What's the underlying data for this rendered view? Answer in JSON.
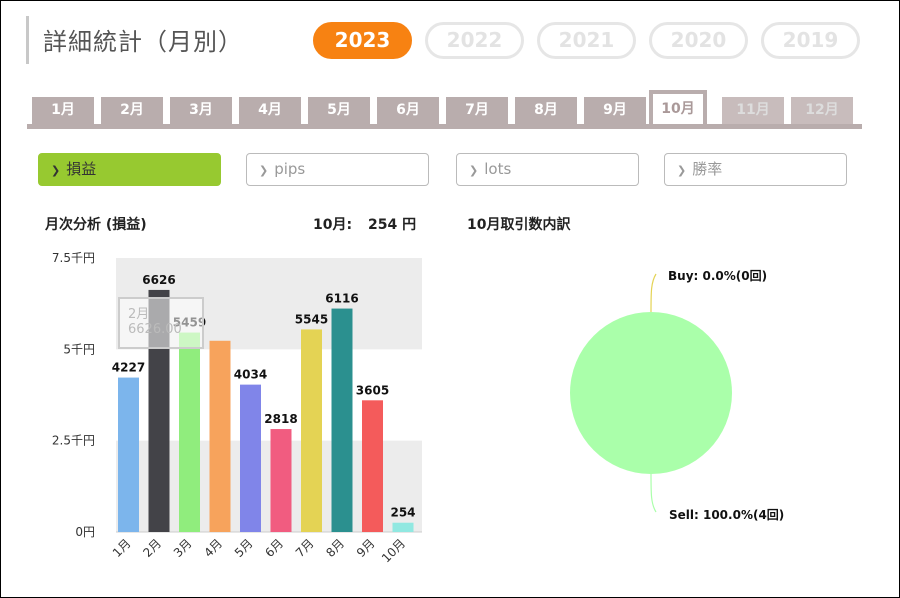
{
  "header": {
    "title": "詳細統計（月別）"
  },
  "years": [
    {
      "label": "2023",
      "active": true
    },
    {
      "label": "2022",
      "active": false
    },
    {
      "label": "2021",
      "active": false
    },
    {
      "label": "2020",
      "active": false
    },
    {
      "label": "2019",
      "active": false
    }
  ],
  "months": [
    {
      "label": "1月"
    },
    {
      "label": "2月"
    },
    {
      "label": "3月"
    },
    {
      "label": "4月"
    },
    {
      "label": "5月"
    },
    {
      "label": "6月"
    },
    {
      "label": "7月"
    },
    {
      "label": "8月"
    },
    {
      "label": "9月"
    },
    {
      "label": "10月",
      "active": true
    },
    {
      "label": "11月"
    },
    {
      "label": "12月"
    }
  ],
  "metrics": [
    {
      "label": "損益",
      "active": true
    },
    {
      "label": "pips"
    },
    {
      "label": "lots"
    },
    {
      "label": "勝率"
    }
  ],
  "bar_section": {
    "label": "月次分析 (損益)",
    "summary_month": "10月:",
    "summary_value": "254 円"
  },
  "pie_section": {
    "label": "10月取引数内訳"
  },
  "tooltip": {
    "month": "2月",
    "value": "6626.00"
  },
  "chart_data": [
    {
      "type": "bar",
      "categories": [
        "1月",
        "2月",
        "3月",
        "4月",
        "5月",
        "6月",
        "7月",
        "8月",
        "9月",
        "10月"
      ],
      "values": [
        4227,
        6626,
        5459,
        5234,
        4034,
        2818,
        5545,
        6116,
        3605,
        254
      ],
      "data_labels": [
        "4227",
        "6626",
        "5459",
        "",
        "4034",
        "2818",
        "5545",
        "6116",
        "3605",
        "254"
      ],
      "colors": [
        "#7cb5ec",
        "#434348",
        "#90ed7d",
        "#f7a35c",
        "#8085e9",
        "#f15c80",
        "#e4d354",
        "#2b908f",
        "#f45b5b",
        "#91e8e1"
      ],
      "y_ticks": [
        "0円",
        "2.5千円",
        "5千円",
        "7.5千円"
      ],
      "ylim": [
        0,
        7500
      ],
      "highlighted_category": "2月"
    },
    {
      "type": "pie",
      "slices": [
        {
          "name": "Buy",
          "label": "Buy: 0.0%(0回)",
          "value": 0,
          "color": "#e4d354"
        },
        {
          "name": "Sell",
          "label": "Sell: 100.0%(4回)",
          "value": 100,
          "color": "#aaffaa"
        }
      ]
    }
  ]
}
